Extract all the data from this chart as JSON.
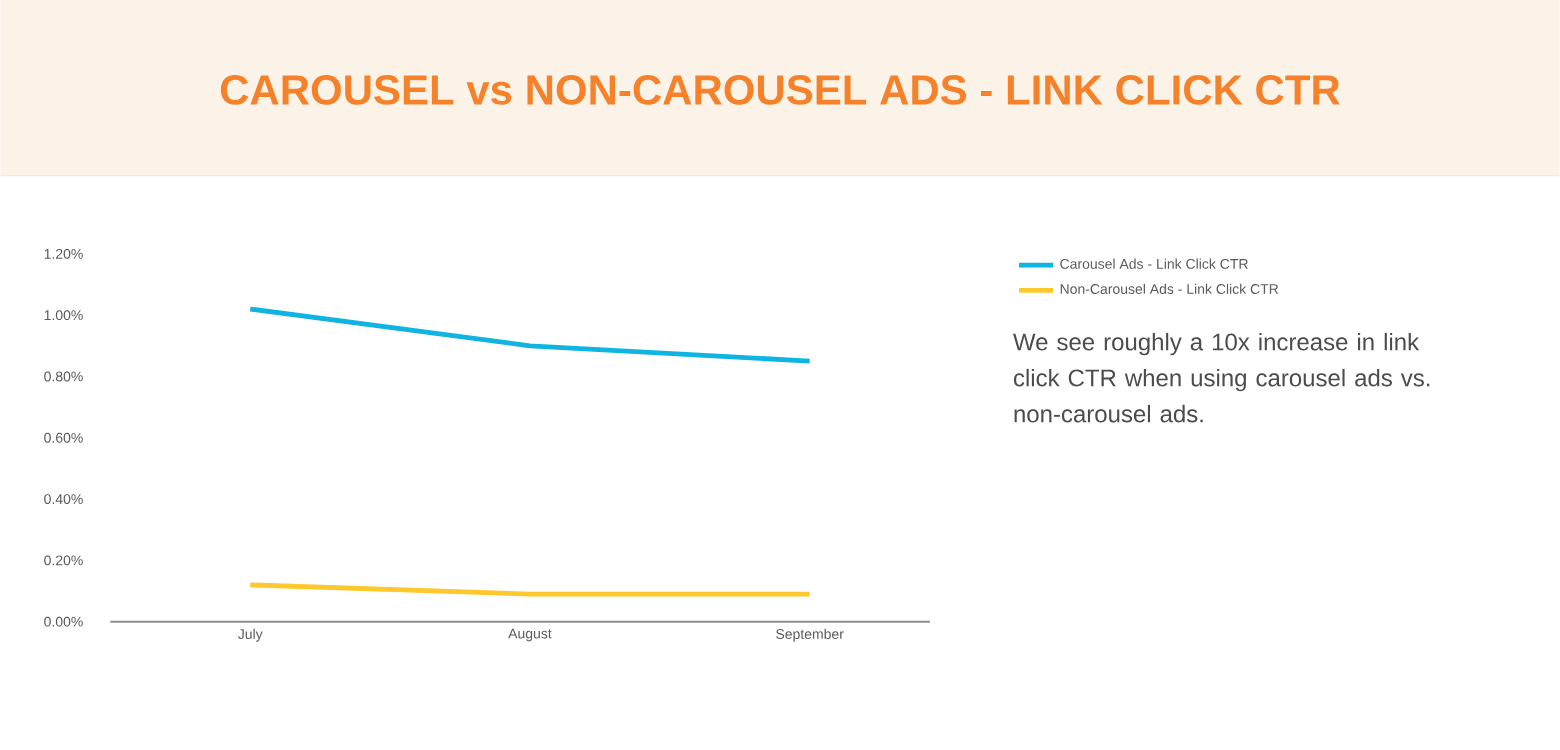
{
  "chart_data": {
    "type": "line",
    "title": "CAROUSEL vs NON-CAROUSEL ADS - LINK CLICK CTR",
    "categories": [
      "July",
      "August",
      "September"
    ],
    "series": [
      {
        "name": "Carousel Ads - Link Click CTR",
        "color": "#10b4e0",
        "values": [
          1.02,
          0.9,
          0.85
        ]
      },
      {
        "name": "Non-Carousel Ads - Link Click CTR",
        "color": "#fdc82c",
        "values": [
          0.12,
          0.09,
          0.09
        ]
      }
    ],
    "ylim": [
      0,
      1.2
    ],
    "yticks": [
      {
        "value": 0,
        "label": "0.00%"
      },
      {
        "value": 0.2,
        "label": "0.20%"
      },
      {
        "value": 0.4,
        "label": "0.40%"
      },
      {
        "value": 0.6,
        "label": "0.60%"
      },
      {
        "value": 0.8,
        "label": "0.80%"
      },
      {
        "value": 1.0,
        "label": "1.00%"
      },
      {
        "value": 1.2,
        "label": "1.20%"
      }
    ],
    "grid": false,
    "legend": "right",
    "annotations": [
      "We see roughly a 10x increase in link click CTR when using carousel ads vs. non-carousel ads."
    ]
  }
}
